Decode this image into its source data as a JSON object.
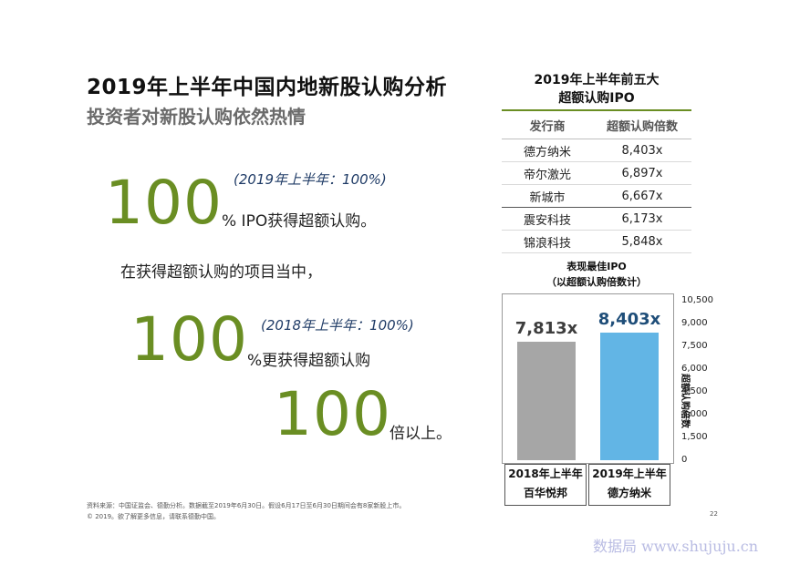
{
  "header": {
    "title": "2019年上半年中国内地新股认购分析",
    "subtitle": "投资者对新股认购依然热情"
  },
  "stats": {
    "block1": {
      "number": "100",
      "note": "(2019年上半年：100%)",
      "suffix": "% IPO获得超额认购。"
    },
    "sentence": "在获得超额认购的项目当中，",
    "block2": {
      "number": "100",
      "note": "(2018年上半年：100%)",
      "suffix": "%更获得超额认购"
    },
    "block3": {
      "number": "100",
      "suffix": "倍以上。"
    }
  },
  "table": {
    "title_line1": "2019年上半年前五大",
    "title_line2": "超额认购IPO",
    "columns": [
      "发行商",
      "超额认购倍数"
    ],
    "rows": [
      [
        "德方纳米",
        "8,403x"
      ],
      [
        "帝尔激光",
        "6,897x"
      ],
      [
        "新城市",
        "6,667x"
      ],
      [
        "震安科技",
        "6,173x"
      ],
      [
        "锦浪科技",
        "5,848x"
      ]
    ]
  },
  "chart_data": {
    "type": "bar",
    "title": "表现最佳IPO",
    "subtitle": "（以超额认购倍数计）",
    "ylabel": "超额认购倍数",
    "ylim": [
      0,
      10500
    ],
    "yticks": [
      "0",
      "1,500",
      "3,000",
      "4,500",
      "6,000",
      "7,500",
      "9,000",
      "10,500"
    ],
    "categories": [
      {
        "period": "2018年上半年",
        "name": "百华悦邦"
      },
      {
        "period": "2019年上半年",
        "name": "德方纳米"
      }
    ],
    "values": [
      7813,
      8403
    ],
    "value_labels": [
      "7,813x",
      "8,403x"
    ],
    "colors": [
      "#a6a6a6",
      "#62b5e5"
    ],
    "label_colors": [
      "#3d3d3d",
      "#1f4e79"
    ]
  },
  "footer": {
    "source": "资料来源：中国证监会、德勤分析。数据截至2019年6月30日。假设6月17日至6月30日期间会有8家新股上市。",
    "copyright": "© 2019。欲了解更多信息，请联系德勤中国。",
    "page": "22",
    "watermark": "数据局 www.shujuju.cn"
  }
}
